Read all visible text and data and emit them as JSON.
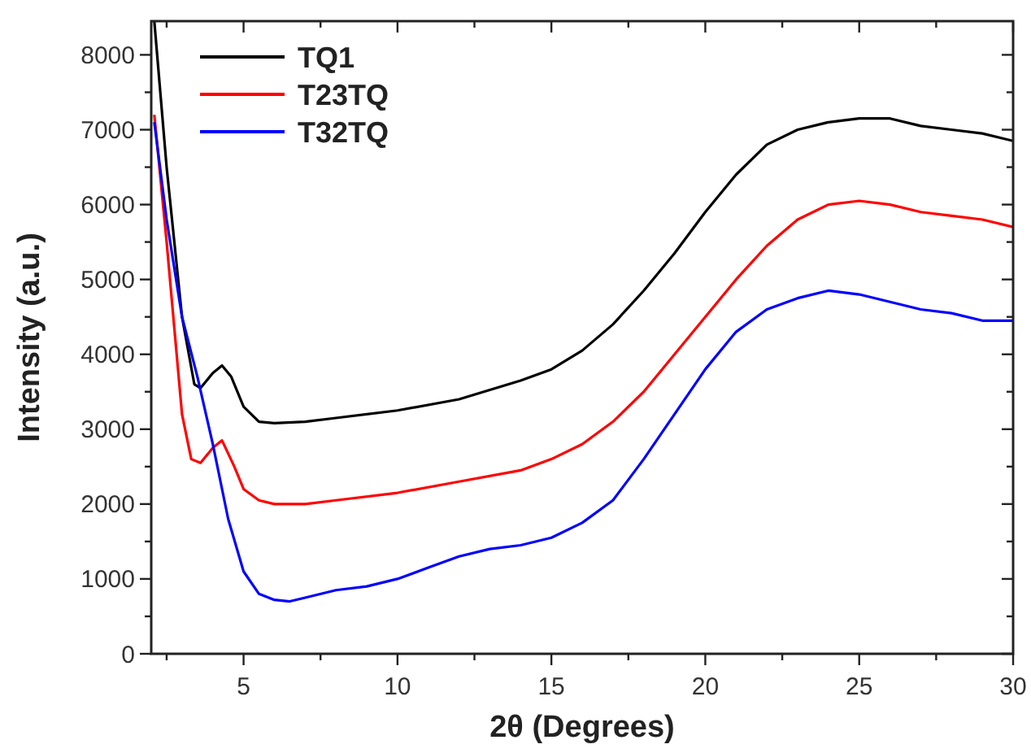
{
  "chart_data": {
    "type": "line",
    "xlabel": "2θ (Degrees)",
    "ylabel": "Intensity (a.u.)",
    "xlim": [
      2,
      30
    ],
    "ylim": [
      0,
      8450
    ],
    "xticks": [
      {
        "value": 2.5,
        "label": null
      },
      5,
      {
        "value": 7.5,
        "label": null
      },
      10,
      {
        "value": 12.5,
        "label": null
      },
      15,
      {
        "value": 17.5,
        "label": null
      },
      20,
      {
        "value": 22.5,
        "label": null
      },
      25,
      {
        "value": 27.5,
        "label": null
      },
      30
    ],
    "yticks": [
      0,
      {
        "value": 500,
        "label": null
      },
      1000,
      {
        "value": 1500,
        "label": null
      },
      2000,
      {
        "value": 2500,
        "label": null
      },
      3000,
      {
        "value": 3500,
        "label": null
      },
      4000,
      {
        "value": 4500,
        "label": null
      },
      5000,
      {
        "value": 5500,
        "label": null
      },
      6000,
      {
        "value": 6500,
        "label": null
      },
      7000,
      {
        "value": 7500,
        "label": null
      },
      8000
    ],
    "grid": false,
    "legend": "top left",
    "marker": "none",
    "line_style": "solid",
    "series": [
      {
        "name": "TQ1",
        "color": "#000000",
        "x": [
          2.1,
          2.5,
          3,
          3.4,
          3.6,
          4,
          4.3,
          4.6,
          5,
          5.5,
          6,
          7,
          8,
          10,
          12,
          14,
          15,
          16,
          17,
          18,
          19,
          20,
          21,
          22,
          23,
          24,
          25,
          26,
          27,
          28,
          29,
          30
        ],
        "values": [
          8450,
          6500,
          4500,
          3600,
          3550,
          3750,
          3850,
          3700,
          3300,
          3100,
          3080,
          3100,
          3150,
          3250,
          3400,
          3650,
          3800,
          4050,
          4400,
          4850,
          5350,
          5900,
          6400,
          6800,
          7000,
          7100,
          7150,
          7150,
          7050,
          7000,
          6950,
          6850
        ]
      },
      {
        "name": "T23TQ",
        "color": "#ff0000",
        "x": [
          2.1,
          2.5,
          3,
          3.3,
          3.6,
          4,
          4.3,
          4.7,
          5,
          5.5,
          6,
          7,
          8,
          10,
          12,
          14,
          15,
          16,
          17,
          18,
          19,
          20,
          21,
          22,
          23,
          24,
          25,
          26,
          27,
          28,
          29,
          30
        ],
        "values": [
          7200,
          5500,
          3200,
          2600,
          2550,
          2750,
          2850,
          2500,
          2200,
          2050,
          2000,
          2000,
          2050,
          2150,
          2300,
          2450,
          2600,
          2800,
          3100,
          3500,
          4000,
          4500,
          5000,
          5450,
          5800,
          6000,
          6050,
          6000,
          5900,
          5850,
          5800,
          5700
        ]
      },
      {
        "name": "T32TQ",
        "color": "#0000ff",
        "x": [
          2.1,
          2.5,
          3,
          3.5,
          4,
          4.5,
          5,
          5.5,
          6,
          6.5,
          7,
          8,
          9,
          10,
          11,
          12,
          13,
          14,
          15,
          16,
          17,
          18,
          19,
          20,
          21,
          22,
          23,
          24,
          25,
          26,
          27,
          28,
          29,
          30
        ],
        "values": [
          7100,
          5800,
          4500,
          3700,
          2800,
          1800,
          1100,
          800,
          720,
          700,
          750,
          850,
          900,
          1000,
          1150,
          1300,
          1400,
          1450,
          1550,
          1750,
          2050,
          2600,
          3200,
          3800,
          4300,
          4600,
          4750,
          4850,
          4800,
          4700,
          4600,
          4550,
          4450,
          4450
        ]
      }
    ]
  }
}
